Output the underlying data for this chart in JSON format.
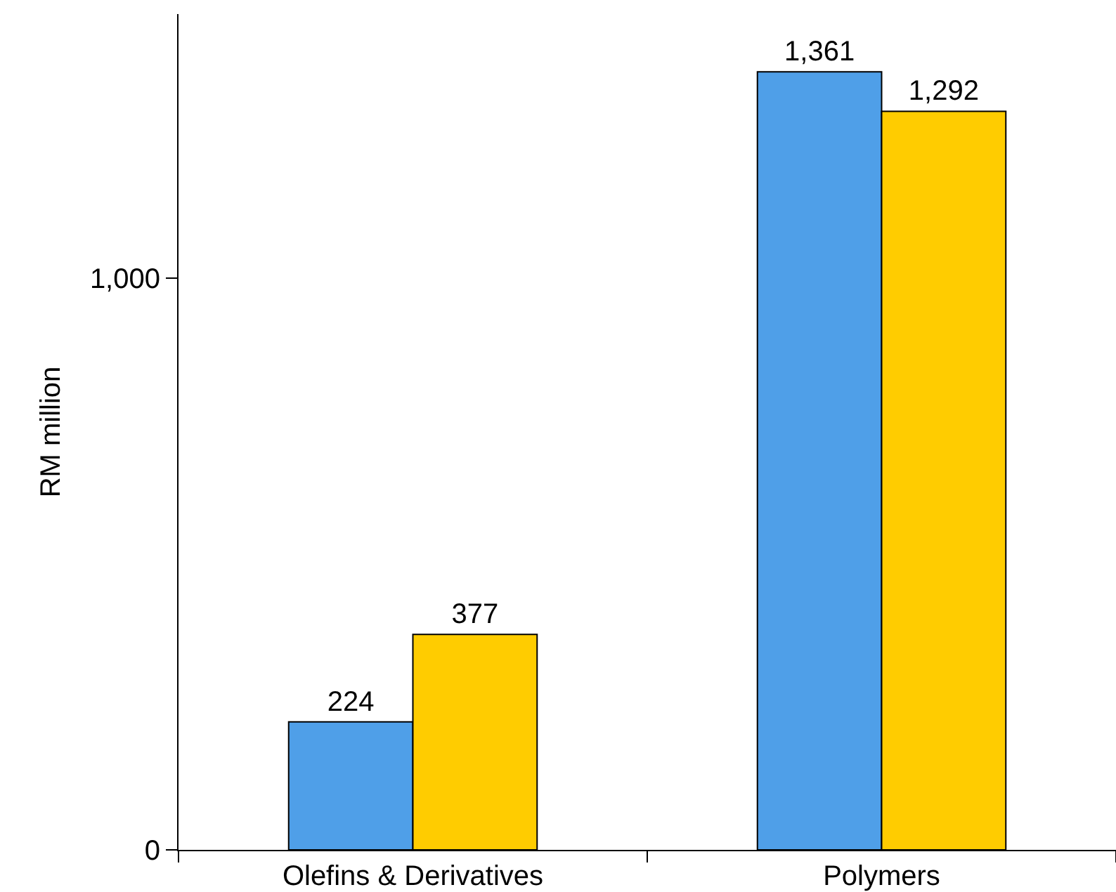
{
  "chart_data": {
    "type": "bar",
    "ylabel": "RM million",
    "categories": [
      "Olefins & Derivatives",
      "Polymers"
    ],
    "series": [
      {
        "color": "#4f9fe8",
        "values": [
          224,
          1361
        ],
        "value_labels": [
          "224",
          "1,361"
        ]
      },
      {
        "color": "#ffcc00",
        "values": [
          377,
          1292
        ],
        "value_labels": [
          "377",
          "1,292"
        ]
      }
    ],
    "ylim": [
      0,
      1462
    ],
    "yticks": [
      0,
      {
        "value": 1000,
        "label": "1,000"
      }
    ],
    "grid": false
  }
}
